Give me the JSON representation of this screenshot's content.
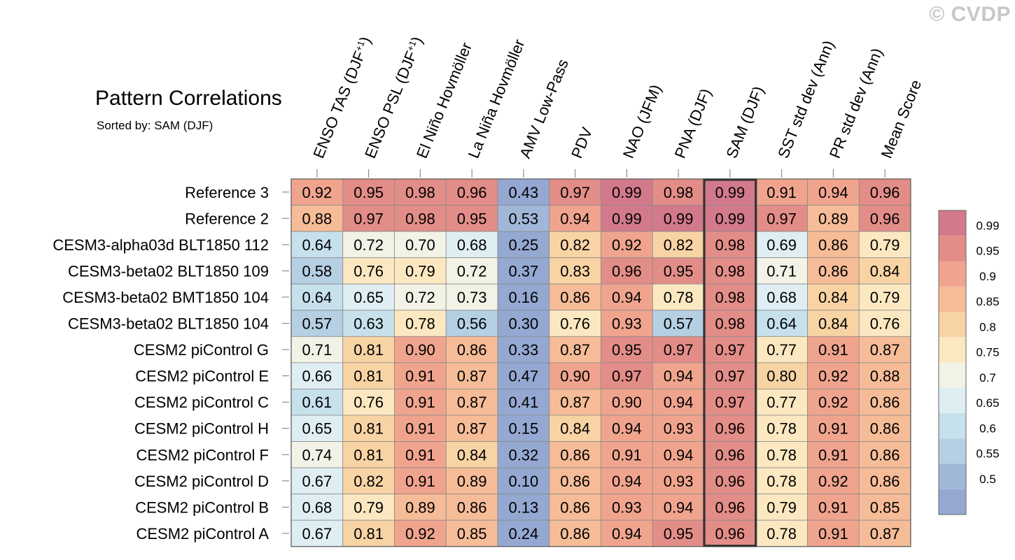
{
  "watermark": "© CVDP",
  "chart_data": {
    "type": "heatmap",
    "title": "Pattern Correlations",
    "subtitle": "Sorted by: SAM (DJF)",
    "highlighted_column": "SAM (DJF)",
    "columns": [
      {
        "label": "ENSO TAS (DJF",
        "sup": "+1",
        "suffix": ")"
      },
      {
        "label": "ENSO PSL (DJF",
        "sup": "+1",
        "suffix": ")"
      },
      {
        "label": "El Niño Hovmöller",
        "sup": "",
        "suffix": ""
      },
      {
        "label": "La Niña Hovmöller",
        "sup": "",
        "suffix": ""
      },
      {
        "label": "AMV Low-Pass",
        "sup": "",
        "suffix": ""
      },
      {
        "label": "PDV",
        "sup": "",
        "suffix": ""
      },
      {
        "label": "NAO (JFM)",
        "sup": "",
        "suffix": ""
      },
      {
        "label": "PNA (DJF)",
        "sup": "",
        "suffix": ""
      },
      {
        "label": "SAM (DJF)",
        "sup": "",
        "suffix": ""
      },
      {
        "label": "SST std dev (Ann)",
        "sup": "",
        "suffix": ""
      },
      {
        "label": "PR std dev (Ann)",
        "sup": "",
        "suffix": ""
      },
      {
        "label": "Mean Score",
        "sup": "",
        "suffix": ""
      }
    ],
    "rows": [
      "Reference 3",
      "Reference 2",
      "CESM3-alpha03d BLT1850 112",
      "CESM3-beta02 BLT1850 109",
      "CESM3-beta02 BMT1850 104",
      "CESM3-beta02 BLT1850 104",
      "CESM2 piControl G",
      "CESM2 piControl E",
      "CESM2 piControl C",
      "CESM2 piControl H",
      "CESM2 piControl F",
      "CESM2 piControl D",
      "CESM2 piControl B",
      "CESM2 piControl A"
    ],
    "values": [
      [
        "0.92",
        "0.95",
        "0.98",
        "0.96",
        "0.43",
        "0.97",
        "0.99",
        "0.98",
        "0.99",
        "0.91",
        "0.94",
        "0.96"
      ],
      [
        "0.88",
        "0.97",
        "0.98",
        "0.95",
        "0.53",
        "0.94",
        "0.99",
        "0.99",
        "0.99",
        "0.97",
        "0.89",
        "0.96"
      ],
      [
        "0.64",
        "0.72",
        "0.70",
        "0.68",
        "0.25",
        "0.82",
        "0.92",
        "0.82",
        "0.98",
        "0.69",
        "0.86",
        "0.79"
      ],
      [
        "0.58",
        "0.76",
        "0.79",
        "0.72",
        "0.37",
        "0.83",
        "0.96",
        "0.95",
        "0.98",
        "0.71",
        "0.86",
        "0.84"
      ],
      [
        "0.64",
        "0.65",
        "0.72",
        "0.73",
        "0.16",
        "0.86",
        "0.94",
        "0.78",
        "0.98",
        "0.68",
        "0.84",
        "0.79"
      ],
      [
        "0.57",
        "0.63",
        "0.78",
        "0.56",
        "0.30",
        "0.76",
        "0.93",
        "0.57",
        "0.98",
        "0.64",
        "0.84",
        "0.76"
      ],
      [
        "0.71",
        "0.81",
        "0.90",
        "0.86",
        "0.33",
        "0.87",
        "0.95",
        "0.97",
        "0.97",
        "0.77",
        "0.91",
        "0.87"
      ],
      [
        "0.66",
        "0.81",
        "0.91",
        "0.87",
        "0.47",
        "0.90",
        "0.97",
        "0.94",
        "0.97",
        "0.80",
        "0.92",
        "0.88"
      ],
      [
        "0.61",
        "0.76",
        "0.91",
        "0.87",
        "0.41",
        "0.87",
        "0.90",
        "0.94",
        "0.97",
        "0.77",
        "0.92",
        "0.86"
      ],
      [
        "0.65",
        "0.81",
        "0.91",
        "0.87",
        "0.15",
        "0.84",
        "0.94",
        "0.93",
        "0.96",
        "0.78",
        "0.91",
        "0.86"
      ],
      [
        "0.74",
        "0.81",
        "0.91",
        "0.84",
        "0.32",
        "0.86",
        "0.91",
        "0.94",
        "0.96",
        "0.78",
        "0.91",
        "0.86"
      ],
      [
        "0.67",
        "0.82",
        "0.91",
        "0.89",
        "0.10",
        "0.86",
        "0.94",
        "0.93",
        "0.96",
        "0.78",
        "0.92",
        "0.86"
      ],
      [
        "0.68",
        "0.79",
        "0.89",
        "0.86",
        "0.13",
        "0.86",
        "0.93",
        "0.94",
        "0.96",
        "0.79",
        "0.91",
        "0.85"
      ],
      [
        "0.67",
        "0.81",
        "0.92",
        "0.85",
        "0.24",
        "0.86",
        "0.94",
        "0.95",
        "0.96",
        "0.78",
        "0.91",
        "0.87"
      ]
    ],
    "colorbar": {
      "levels": [
        "0.99",
        "0.95",
        "0.9",
        "0.85",
        "0.8",
        "0.75",
        "0.7",
        "0.65",
        "0.6",
        "0.55",
        "0.5"
      ],
      "colors": [
        "#d27a8b",
        "#e38d88",
        "#f0a48e",
        "#f6bc97",
        "#f8d3a4",
        "#fbe8c1",
        "#f3f2e6",
        "#dfeef3",
        "#c6e0ec",
        "#b5cfe3",
        "#a1b7d8",
        "#95a8d2"
      ]
    }
  }
}
